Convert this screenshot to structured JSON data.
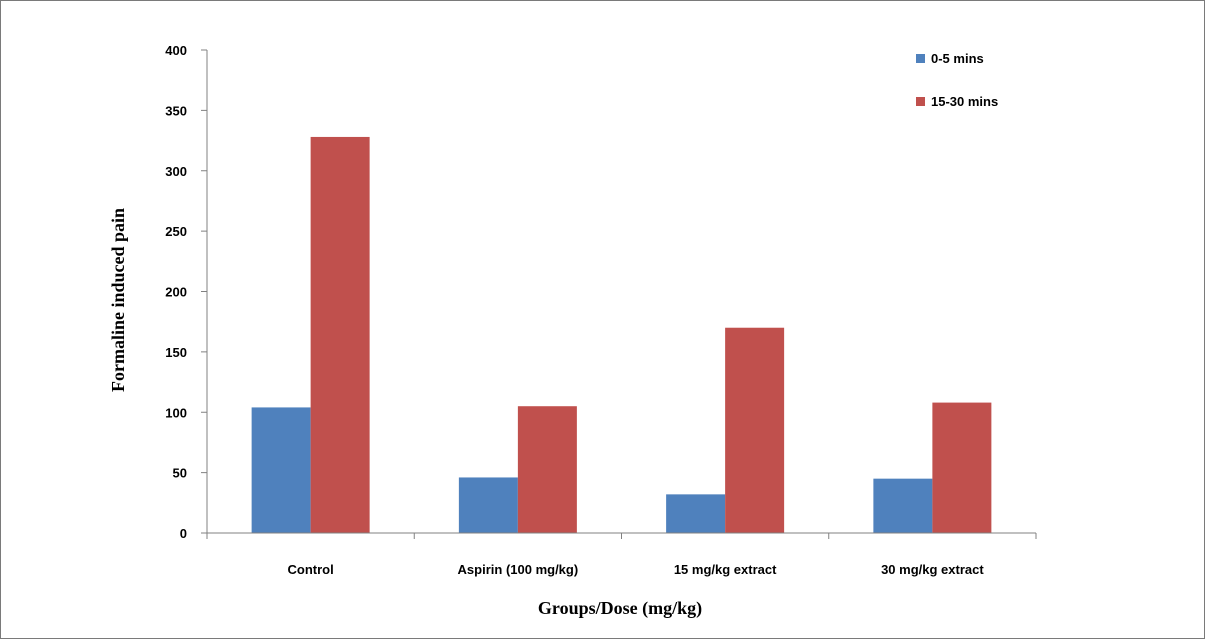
{
  "chart_data": {
    "type": "bar",
    "categories": [
      "Control",
      "Aspirin (100 mg/kg)",
      "15 mg/kg extract",
      "30 mg/kg extract"
    ],
    "series": [
      {
        "name": "0-5 mins",
        "values": [
          104,
          46,
          32,
          45
        ],
        "color": "#4f81bd"
      },
      {
        "name": "15-30 mins",
        "values": [
          328,
          105,
          170,
          108
        ],
        "color": "#c0504d"
      }
    ],
    "xlabel": "Groups/Dose (mg/kg)",
    "ylabel": "Formaline induced pain",
    "ylim": [
      0,
      400
    ],
    "yticks": [
      0,
      50,
      100,
      150,
      200,
      250,
      300,
      350,
      400
    ],
    "grid": false,
    "legend": "top-right"
  }
}
